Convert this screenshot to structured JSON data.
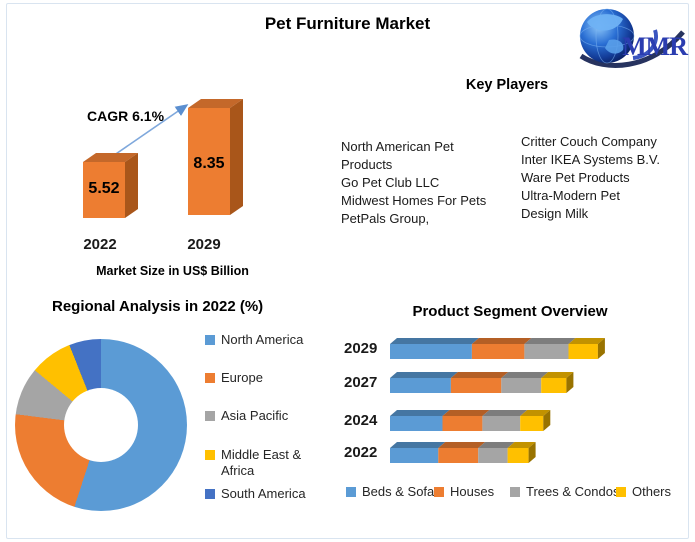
{
  "header": {
    "title": "Pet Furniture Market"
  },
  "logo": {
    "text": "MMR",
    "icon": "globe-icon",
    "color": "#2b3db0"
  },
  "key_players": {
    "title": "Key Players",
    "columns": [
      {
        "items": [
          "North American Pet Products",
          "Go Pet Club LLC",
          "Midwest Homes For Pets",
          "PetPals Group,"
        ]
      },
      {
        "items": [
          "Critter Couch Company",
          "Inter IKEA Systems B.V.",
          "Ware Pet Products",
          "Ultra-Modern Pet",
          "Design Milk"
        ]
      }
    ]
  },
  "chart_data": [
    {
      "type": "bar",
      "title": "Market Size in US$ Billion",
      "annotation": "CAGR 6.1%",
      "categories": [
        "2022",
        "2029"
      ],
      "values": [
        5.52,
        8.35
      ],
      "bar_color": "#ED7D31",
      "arrow_color": "#7FA8DC",
      "style": "3d-column"
    },
    {
      "type": "pie",
      "subtype": "donut",
      "title": "Regional Analysis in 2022 (%)",
      "labels": [
        "North America",
        "Europe",
        "Asia Pacific",
        "Middle East & Africa",
        "South America"
      ],
      "values": [
        55,
        22,
        9,
        8,
        6
      ],
      "colors": [
        "#5B9BD5",
        "#ED7D31",
        "#A5A5A5",
        "#FFC000",
        "#4472C4"
      ],
      "legend_position": "right"
    },
    {
      "type": "bar",
      "subtype": "horizontal-stacked",
      "title": "Product Segment Overview",
      "categories": [
        "2029",
        "2027",
        "2024",
        "2022"
      ],
      "series": [
        {
          "name": "Beds & Sofas",
          "color": "#5B9BD5",
          "values": [
            39,
            29,
            25,
            23
          ]
        },
        {
          "name": "Houses",
          "color": "#ED7D31",
          "values": [
            25,
            24,
            19,
            19
          ]
        },
        {
          "name": "Trees & Condos",
          "color": "#A5A5A5",
          "values": [
            21,
            19,
            18,
            14
          ]
        },
        {
          "name": "Others",
          "color": "#FFC000",
          "values": [
            14,
            12,
            11,
            10
          ]
        }
      ],
      "legend_position": "bottom",
      "axis_labels_visible": false,
      "style": "3d-bar"
    }
  ]
}
